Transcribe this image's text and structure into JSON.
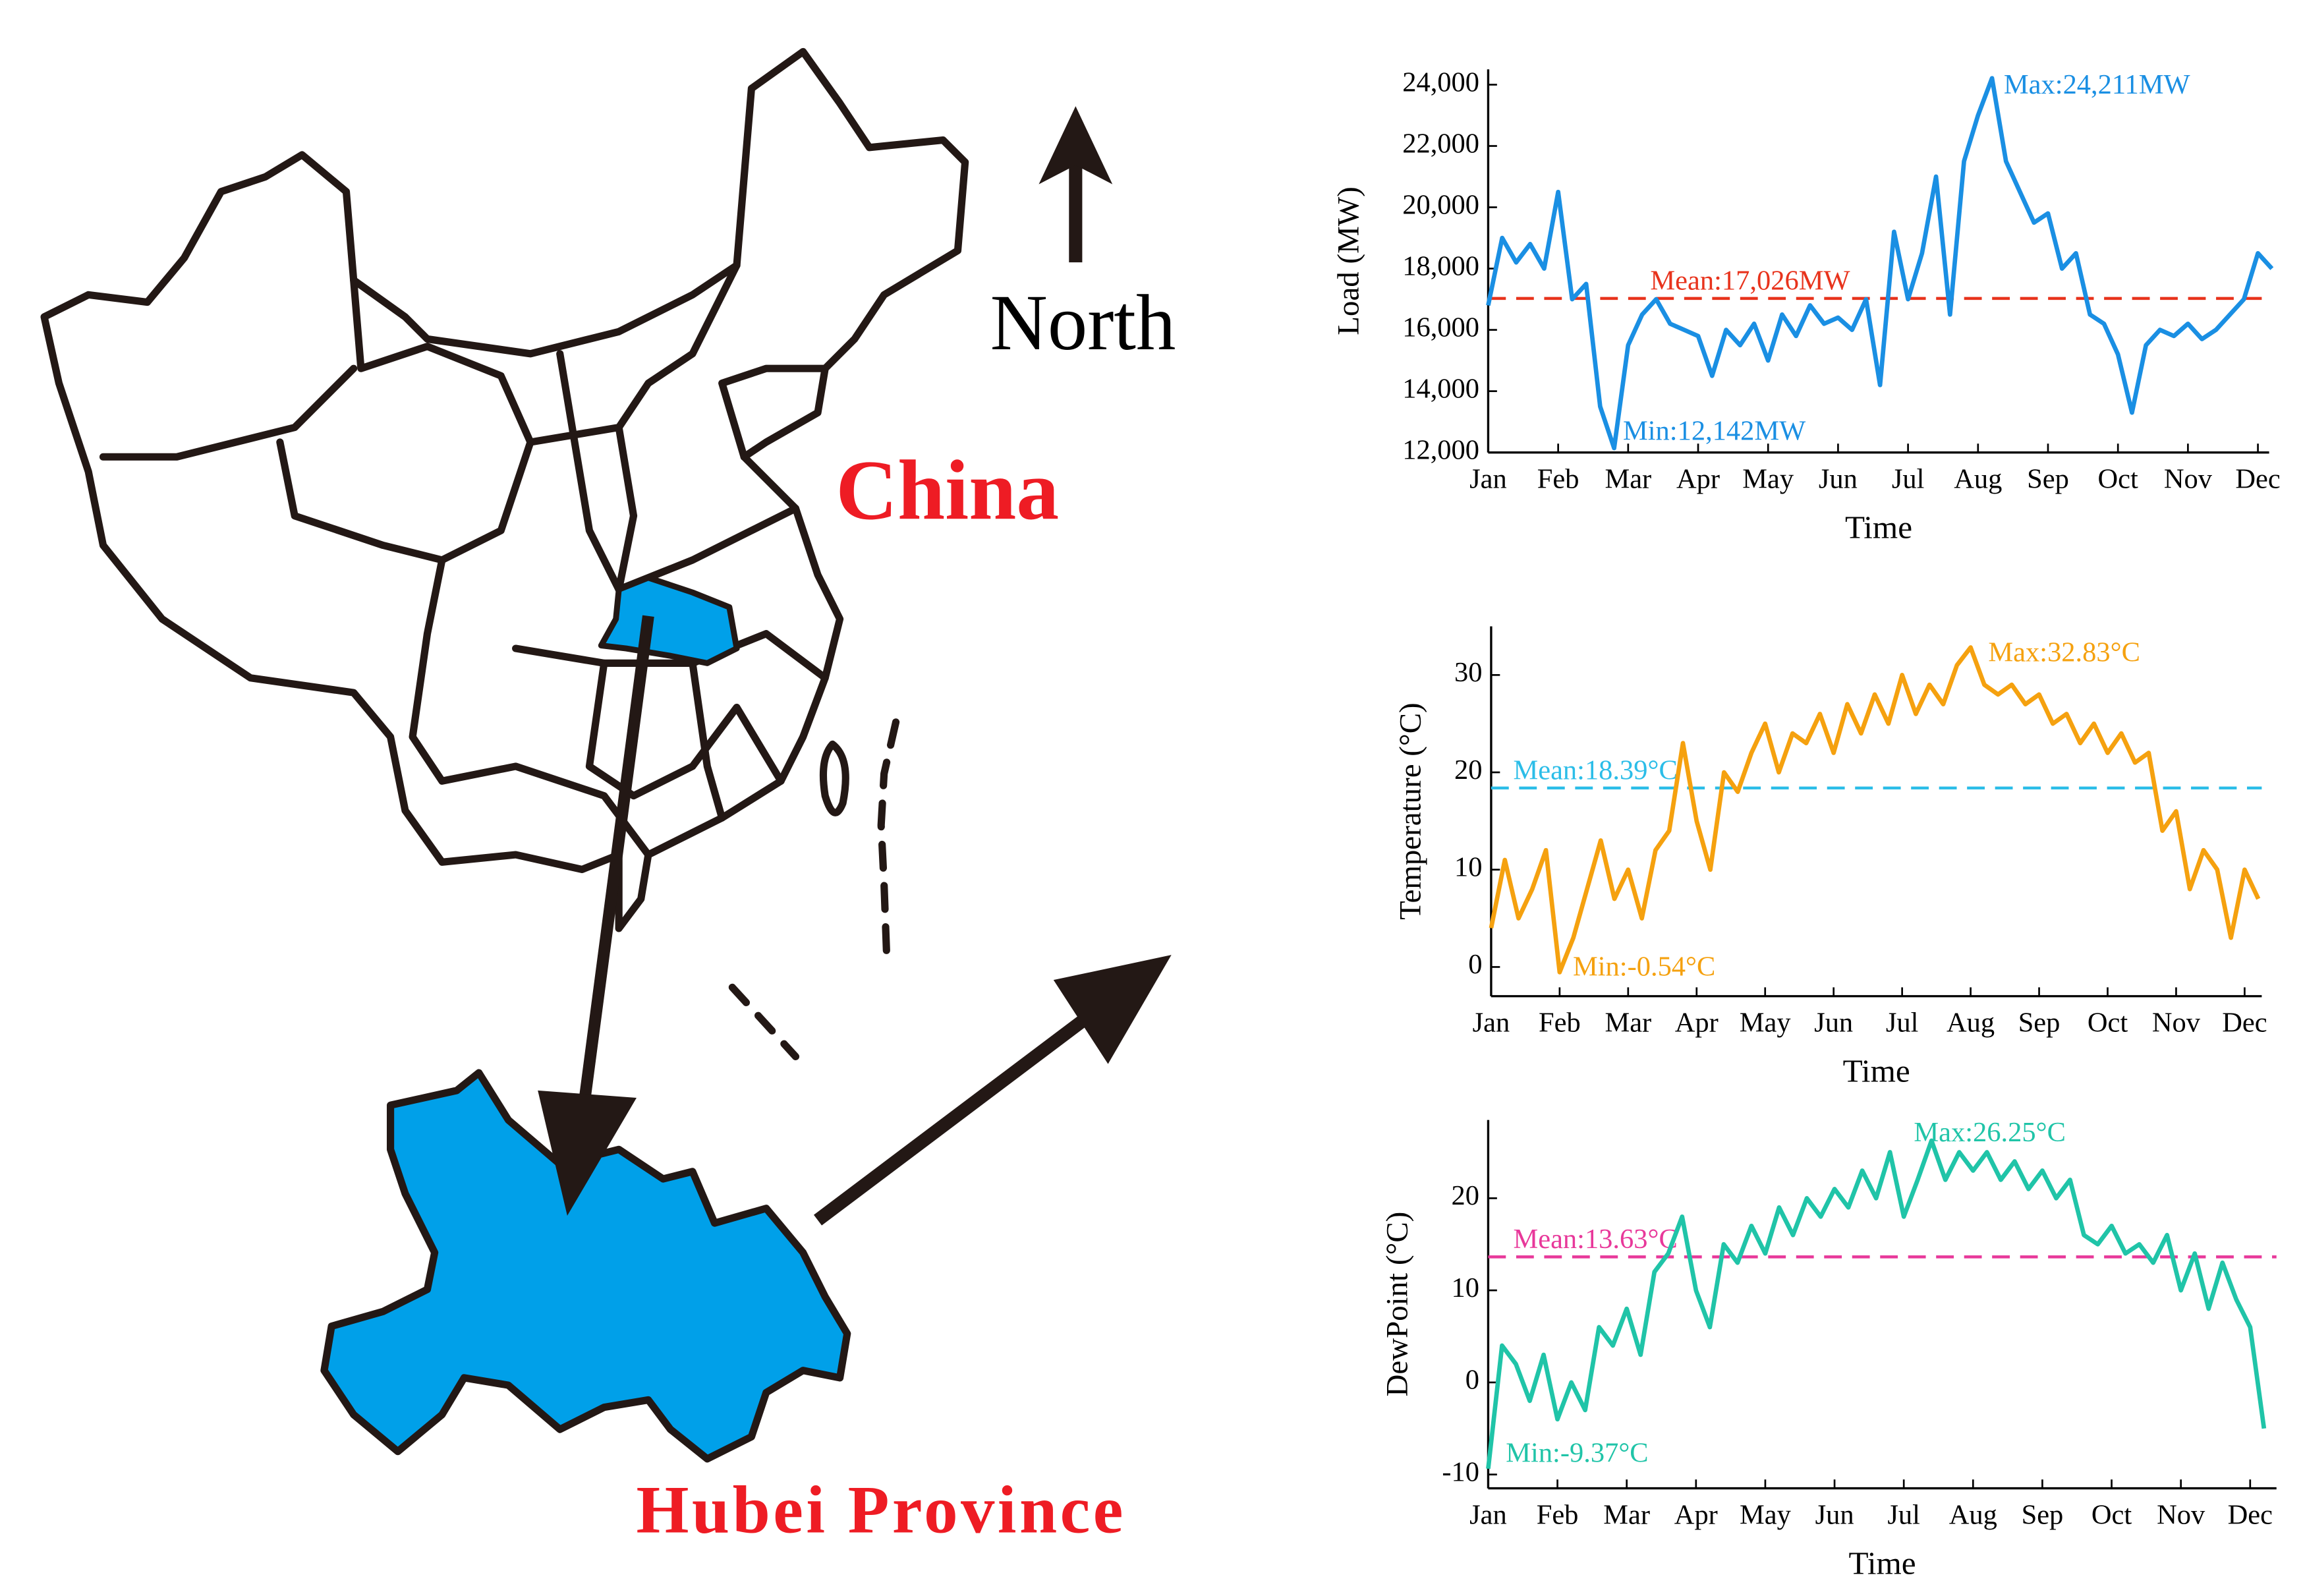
{
  "map": {
    "north": "North",
    "country": "China",
    "province": "Hubei Province"
  },
  "chart_data": [
    {
      "type": "line",
      "ylabel": "Load (MW)",
      "xlabel": "Time",
      "x": [
        0,
        0.2,
        0.4,
        0.6,
        0.8,
        1.0,
        1.2,
        1.4,
        1.6,
        1.8,
        2.0,
        2.2,
        2.4,
        2.6,
        2.8,
        3.0,
        3.2,
        3.4,
        3.6,
        3.8,
        4.0,
        4.2,
        4.4,
        4.6,
        4.8,
        5.0,
        5.2,
        5.4,
        5.6,
        5.8,
        6.0,
        6.2,
        6.4,
        6.6,
        6.8,
        7.0,
        7.2,
        7.4,
        7.6,
        7.8,
        8.0,
        8.2,
        8.4,
        8.6,
        8.8,
        9.0,
        9.2,
        9.4,
        9.6,
        9.8,
        10.0,
        10.2,
        10.4,
        10.6,
        10.8,
        11.0,
        11.2
      ],
      "series": [
        {
          "color": "#1a8fe3",
          "values": [
            16800,
            19000,
            18200,
            18800,
            18000,
            20500,
            17000,
            17500,
            13500,
            12142,
            15500,
            16500,
            17000,
            16200,
            16000,
            15800,
            14500,
            16000,
            15500,
            16200,
            15000,
            16500,
            15800,
            16800,
            16200,
            16400,
            16000,
            17000,
            14200,
            19200,
            17000,
            18500,
            21000,
            16500,
            21500,
            23000,
            24211,
            21500,
            20500,
            19500,
            19800,
            18000,
            18500,
            16500,
            16200,
            15200,
            13300,
            15500,
            16000,
            15800,
            16200,
            15700,
            16000,
            16500,
            17000,
            18500,
            18000
          ]
        }
      ],
      "mean": {
        "value": 17026,
        "label": "Mean:17,026MW",
        "color": "#e8331c"
      },
      "annotations": [
        {
          "label": "Max:24,211MW",
          "x": 7.2,
          "value": 24211
        },
        {
          "label": "Min:12,142MW",
          "x": 1.8,
          "value": 12142
        }
      ],
      "xlim": [
        0,
        11.16
      ],
      "ylim": [
        12000,
        24500
      ],
      "xticks": [
        {
          "value": 0,
          "label": "Jan"
        },
        {
          "value": 1,
          "label": "Feb"
        },
        {
          "value": 2,
          "label": "Mar"
        },
        {
          "value": 3,
          "label": "Apr"
        },
        {
          "value": 4,
          "label": "May"
        },
        {
          "value": 5,
          "label": "Jun"
        },
        {
          "value": 6,
          "label": "Jul"
        },
        {
          "value": 7,
          "label": "Aug"
        },
        {
          "value": 8,
          "label": "Sep"
        },
        {
          "value": 9,
          "label": "Oct"
        },
        {
          "value": 10,
          "label": "Nov"
        },
        {
          "value": 11,
          "label": "Dec"
        }
      ],
      "yticks": [
        {
          "value": 12000,
          "label": "12,000"
        },
        {
          "value": 14000,
          "label": "14,000"
        },
        {
          "value": 16000,
          "label": "16,000"
        },
        {
          "value": 18000,
          "label": "18,000"
        },
        {
          "value": 20000,
          "label": "20,000"
        },
        {
          "value": 22000,
          "label": "22,000"
        },
        {
          "value": 24000,
          "label": "24,000"
        }
      ]
    },
    {
      "type": "line",
      "ylabel": "Temperature (°C)",
      "xlabel": "Time",
      "x": [
        0,
        0.2,
        0.4,
        0.6,
        0.8,
        1.0,
        1.2,
        1.4,
        1.6,
        1.8,
        2.0,
        2.2,
        2.4,
        2.6,
        2.8,
        3.0,
        3.2,
        3.4,
        3.6,
        3.8,
        4.0,
        4.2,
        4.4,
        4.6,
        4.8,
        5.0,
        5.2,
        5.4,
        5.6,
        5.8,
        6.0,
        6.2,
        6.4,
        6.6,
        6.8,
        7.0,
        7.2,
        7.4,
        7.6,
        7.8,
        8.0,
        8.2,
        8.4,
        8.6,
        8.8,
        9.0,
        9.2,
        9.4,
        9.6,
        9.8,
        10.0,
        10.2,
        10.4,
        10.6,
        10.8,
        11.0,
        11.2
      ],
      "series": [
        {
          "color": "#f5a10f",
          "values": [
            4,
            11,
            5,
            8,
            12,
            -0.54,
            3,
            8,
            13,
            7,
            10,
            5,
            12,
            14,
            23,
            15,
            10,
            20,
            18,
            22,
            25,
            20,
            24,
            23,
            26,
            22,
            27,
            24,
            28,
            25,
            30,
            26,
            29,
            27,
            31,
            32.83,
            29,
            28,
            29,
            27,
            28,
            25,
            26,
            23,
            25,
            22,
            24,
            21,
            22,
            14,
            16,
            8,
            12,
            10,
            3,
            10,
            7
          ]
        }
      ],
      "mean": {
        "value": 18.39,
        "label": "Mean:18.39°C",
        "color": "#2bbde8"
      },
      "annotations": [
        {
          "label": "Max:32.83°C",
          "x": 7.0,
          "value": 32.83
        },
        {
          "label": "Min:-0.54°C",
          "x": 1.0,
          "value": -0.54
        }
      ],
      "xlim": [
        0,
        11.25
      ],
      "ylim": [
        -3,
        35
      ],
      "xticks": [
        {
          "value": 0,
          "label": "Jan"
        },
        {
          "value": 1,
          "label": "Feb"
        },
        {
          "value": 2,
          "label": "Mar"
        },
        {
          "value": 3,
          "label": "Apr"
        },
        {
          "value": 4,
          "label": "May"
        },
        {
          "value": 5,
          "label": "Jun"
        },
        {
          "value": 6,
          "label": "Jul"
        },
        {
          "value": 7,
          "label": "Aug"
        },
        {
          "value": 8,
          "label": "Sep"
        },
        {
          "value": 9,
          "label": "Oct"
        },
        {
          "value": 10,
          "label": "Nov"
        },
        {
          "value": 11,
          "label": "Dec"
        }
      ],
      "yticks": [
        0,
        10,
        20,
        30
      ]
    },
    {
      "type": "line",
      "ylabel": "DewPoint (°C)",
      "xlabel": "Time",
      "x": [
        0,
        0.2,
        0.4,
        0.6,
        0.8,
        1.0,
        1.2,
        1.4,
        1.6,
        1.8,
        2.0,
        2.2,
        2.4,
        2.6,
        2.8,
        3.0,
        3.2,
        3.4,
        3.6,
        3.8,
        4.0,
        4.2,
        4.4,
        4.6,
        4.8,
        5.0,
        5.2,
        5.4,
        5.6,
        5.8,
        6.0,
        6.2,
        6.4,
        6.6,
        6.8,
        7.0,
        7.2,
        7.4,
        7.6,
        7.8,
        8.0,
        8.2,
        8.4,
        8.6,
        8.8,
        9.0,
        9.2,
        9.4,
        9.6,
        9.8,
        10.0,
        10.2,
        10.4,
        10.6,
        10.8,
        11.0,
        11.2
      ],
      "series": [
        {
          "color": "#20c4a8",
          "values": [
            -9.37,
            4,
            2,
            -2,
            3,
            -4,
            0,
            -3,
            6,
            4,
            8,
            3,
            12,
            14,
            18,
            10,
            6,
            15,
            13,
            17,
            14,
            19,
            16,
            20,
            18,
            21,
            19,
            23,
            20,
            25,
            18,
            22,
            26.25,
            22,
            25,
            23,
            25,
            22,
            24,
            21,
            23,
            20,
            22,
            16,
            15,
            17,
            14,
            15,
            13,
            16,
            10,
            14,
            8,
            13,
            9,
            6,
            -5
          ]
        }
      ],
      "mean": {
        "value": 13.63,
        "label": "Mean:13.63°C",
        "color": "#e8389a"
      },
      "annotations": [
        {
          "label": "Max:26.25°C",
          "x": 6.4,
          "value": 26.25
        },
        {
          "label": "Min:-9.37°C",
          "x": 0,
          "value": -9.37
        }
      ],
      "xlim": [
        0,
        11.38
      ],
      "ylim": [
        -11.5,
        28.5
      ],
      "xticks": [
        {
          "value": 0,
          "label": "Jan"
        },
        {
          "value": 1,
          "label": "Feb"
        },
        {
          "value": 2,
          "label": "Mar"
        },
        {
          "value": 3,
          "label": "Apr"
        },
        {
          "value": 4,
          "label": "May"
        },
        {
          "value": 5,
          "label": "Jun"
        },
        {
          "value": 6,
          "label": "Jul"
        },
        {
          "value": 7,
          "label": "Aug"
        },
        {
          "value": 8,
          "label": "Sep"
        },
        {
          "value": 9,
          "label": "Oct"
        },
        {
          "value": 10,
          "label": "Nov"
        },
        {
          "value": 11,
          "label": "Dec"
        }
      ],
      "yticks": [
        -10,
        0,
        10,
        20
      ]
    }
  ]
}
